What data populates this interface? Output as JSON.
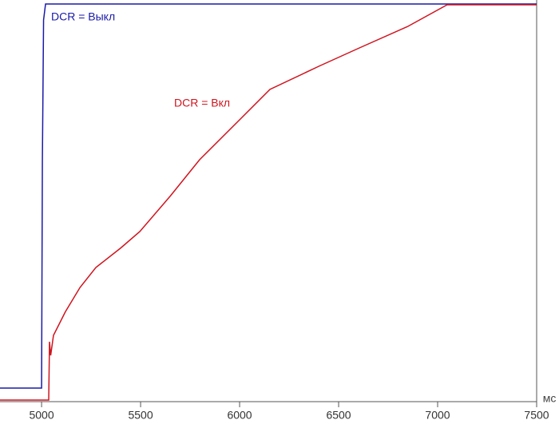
{
  "chart_data": {
    "type": "line",
    "x_unit": "мс",
    "xlim": [
      4790,
      7500
    ],
    "xticks": [
      5000,
      5500,
      6000,
      6500,
      7000,
      7500
    ],
    "ylim": [
      0,
      100
    ],
    "annotations": [
      {
        "text": "DCR = Выкл",
        "color": "#1a1aa8"
      },
      {
        "text": "DCR = Вкл",
        "color": "#d0141e"
      }
    ],
    "series": [
      {
        "name": "DCR = Выкл",
        "color": "#1a1aa8",
        "x": [
          4790,
          5000,
          5004,
          5010,
          5020,
          5500,
          6000,
          7000,
          7500
        ],
        "values": [
          3.4,
          3.4,
          60,
          95.6,
          99.6,
          99.6,
          99.6,
          99.6,
          99.6
        ]
      },
      {
        "name": "DCR = Вкл",
        "color": "#d0141e",
        "x": [
          4790,
          5036,
          5040,
          5046,
          5060,
          5120,
          5194,
          5274,
          5400,
          5496,
          5650,
          5798,
          6000,
          6153,
          6400,
          6605,
          6850,
          7048,
          7500
        ],
        "values": [
          0.4,
          0.4,
          15,
          11.6,
          16.6,
          22.5,
          28.6,
          33.6,
          38.5,
          42.6,
          51.5,
          60.6,
          70.6,
          78.2,
          84,
          88.6,
          94,
          99.4,
          99.4
        ]
      }
    ]
  }
}
